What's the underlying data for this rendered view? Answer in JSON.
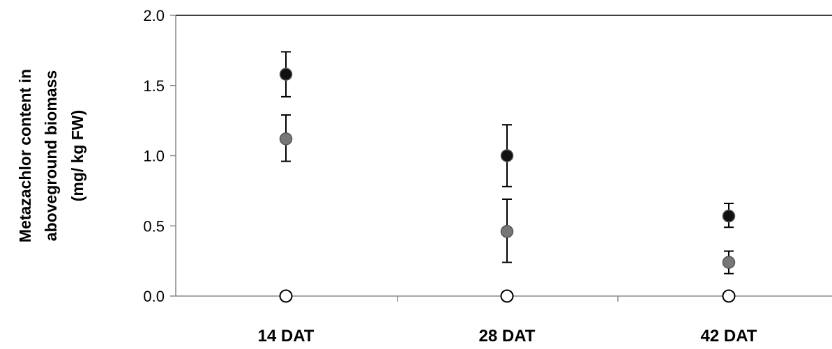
{
  "chart_data": {
    "type": "scatter",
    "title": "",
    "xlabel": "",
    "ylabel_lines": [
      "Metazachlor content in",
      "aboveground biomass",
      "(mg/ kg FW)"
    ],
    "categories": [
      "14 DAT",
      "28 DAT",
      "42 DAT"
    ],
    "ylim": [
      0,
      2
    ],
    "yticks": [
      "0.0",
      "0.5",
      "1.0",
      "1.5",
      "2.0"
    ],
    "ytick_values": [
      0,
      0.5,
      1.0,
      1.5,
      2.0
    ],
    "grid": false,
    "series": [
      {
        "color": "#111111",
        "values": [
          1.58,
          1.0,
          0.57
        ],
        "err_low": [
          0.16,
          0.22,
          0.08
        ],
        "err_high": [
          0.16,
          0.22,
          0.09
        ]
      },
      {
        "color": "#777777",
        "values": [
          1.12,
          0.46,
          0.24
        ],
        "err_low": [
          0.16,
          0.22,
          0.08
        ],
        "err_high": [
          0.17,
          0.23,
          0.08
        ]
      },
      {
        "color": "#ffffff",
        "values": [
          0.0,
          0.0,
          0.0
        ],
        "err_low": [
          0,
          0,
          0
        ],
        "err_high": [
          0,
          0,
          0
        ]
      }
    ]
  }
}
